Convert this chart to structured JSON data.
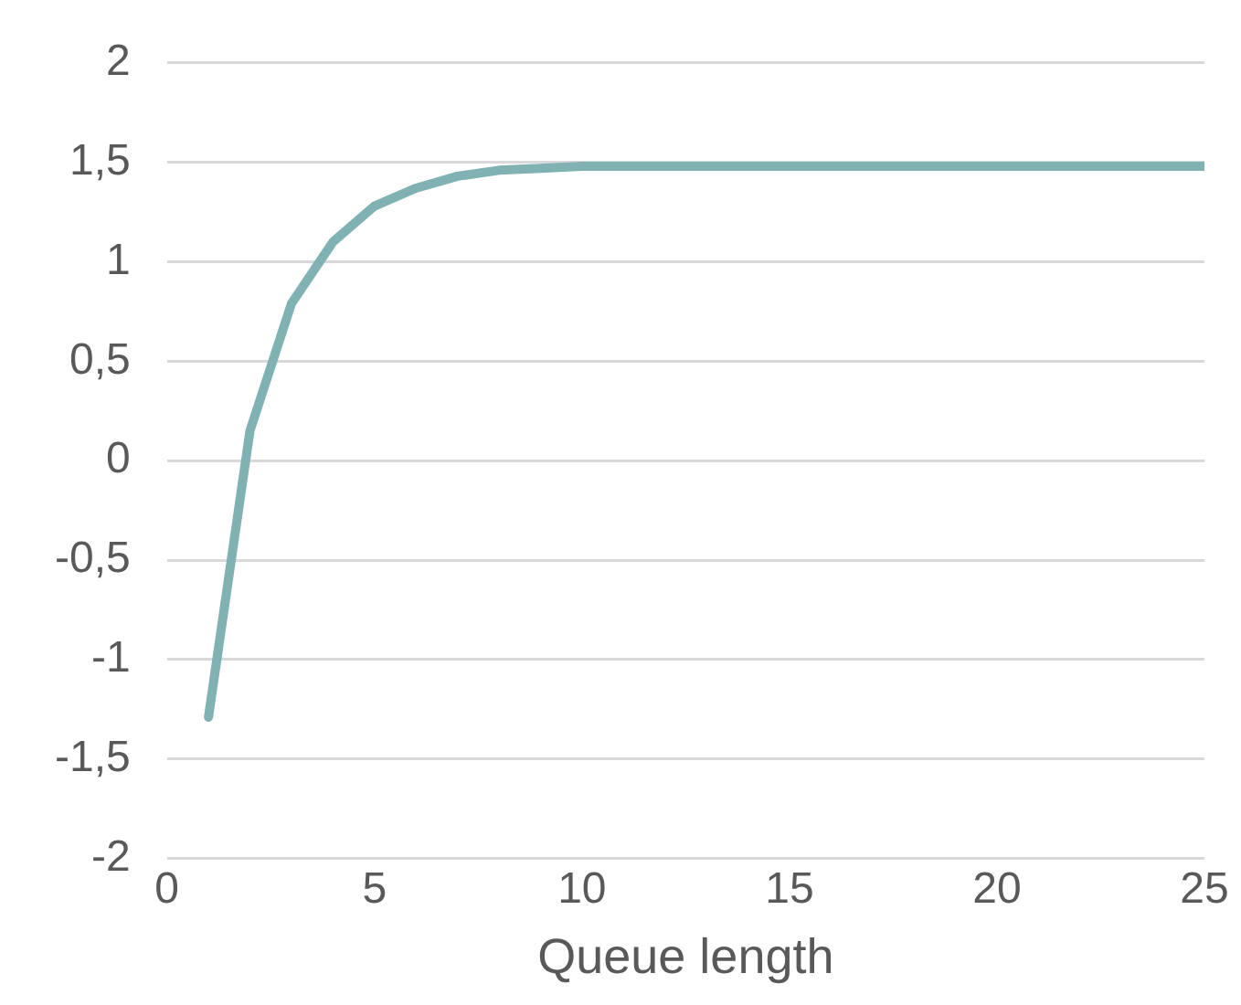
{
  "chart_data": {
    "type": "line",
    "xlabel": "Queue length",
    "x": [
      1,
      2,
      3,
      4,
      5,
      6,
      7,
      8,
      9,
      10,
      11,
      12,
      13,
      14,
      15,
      16,
      17,
      18,
      19,
      20,
      21,
      22,
      23,
      24,
      25
    ],
    "series": [
      {
        "color": "#80b1b3",
        "values": [
          -1.29,
          0.15,
          0.79,
          1.1,
          1.28,
          1.37,
          1.43,
          1.46,
          1.47,
          1.48,
          1.48,
          1.48,
          1.48,
          1.48,
          1.48,
          1.48,
          1.48,
          1.48,
          1.48,
          1.48,
          1.48,
          1.48,
          1.48,
          1.48,
          1.48
        ]
      }
    ],
    "xlim": [
      0,
      25
    ],
    "xticks": [
      0,
      5,
      10,
      15,
      20,
      25
    ],
    "ylim": [
      -2,
      2
    ],
    "yticks": [
      -2,
      {
        "value": -1.5,
        "label": "-1,5"
      },
      -1,
      {
        "value": -0.5,
        "label": "-0,5"
      },
      0,
      {
        "value": 0.5,
        "label": "0,5"
      },
      1,
      {
        "value": 1.5,
        "label": "1,5"
      },
      2
    ],
    "grid": "y",
    "legend": false,
    "marker": "none",
    "line_style": "solid"
  }
}
